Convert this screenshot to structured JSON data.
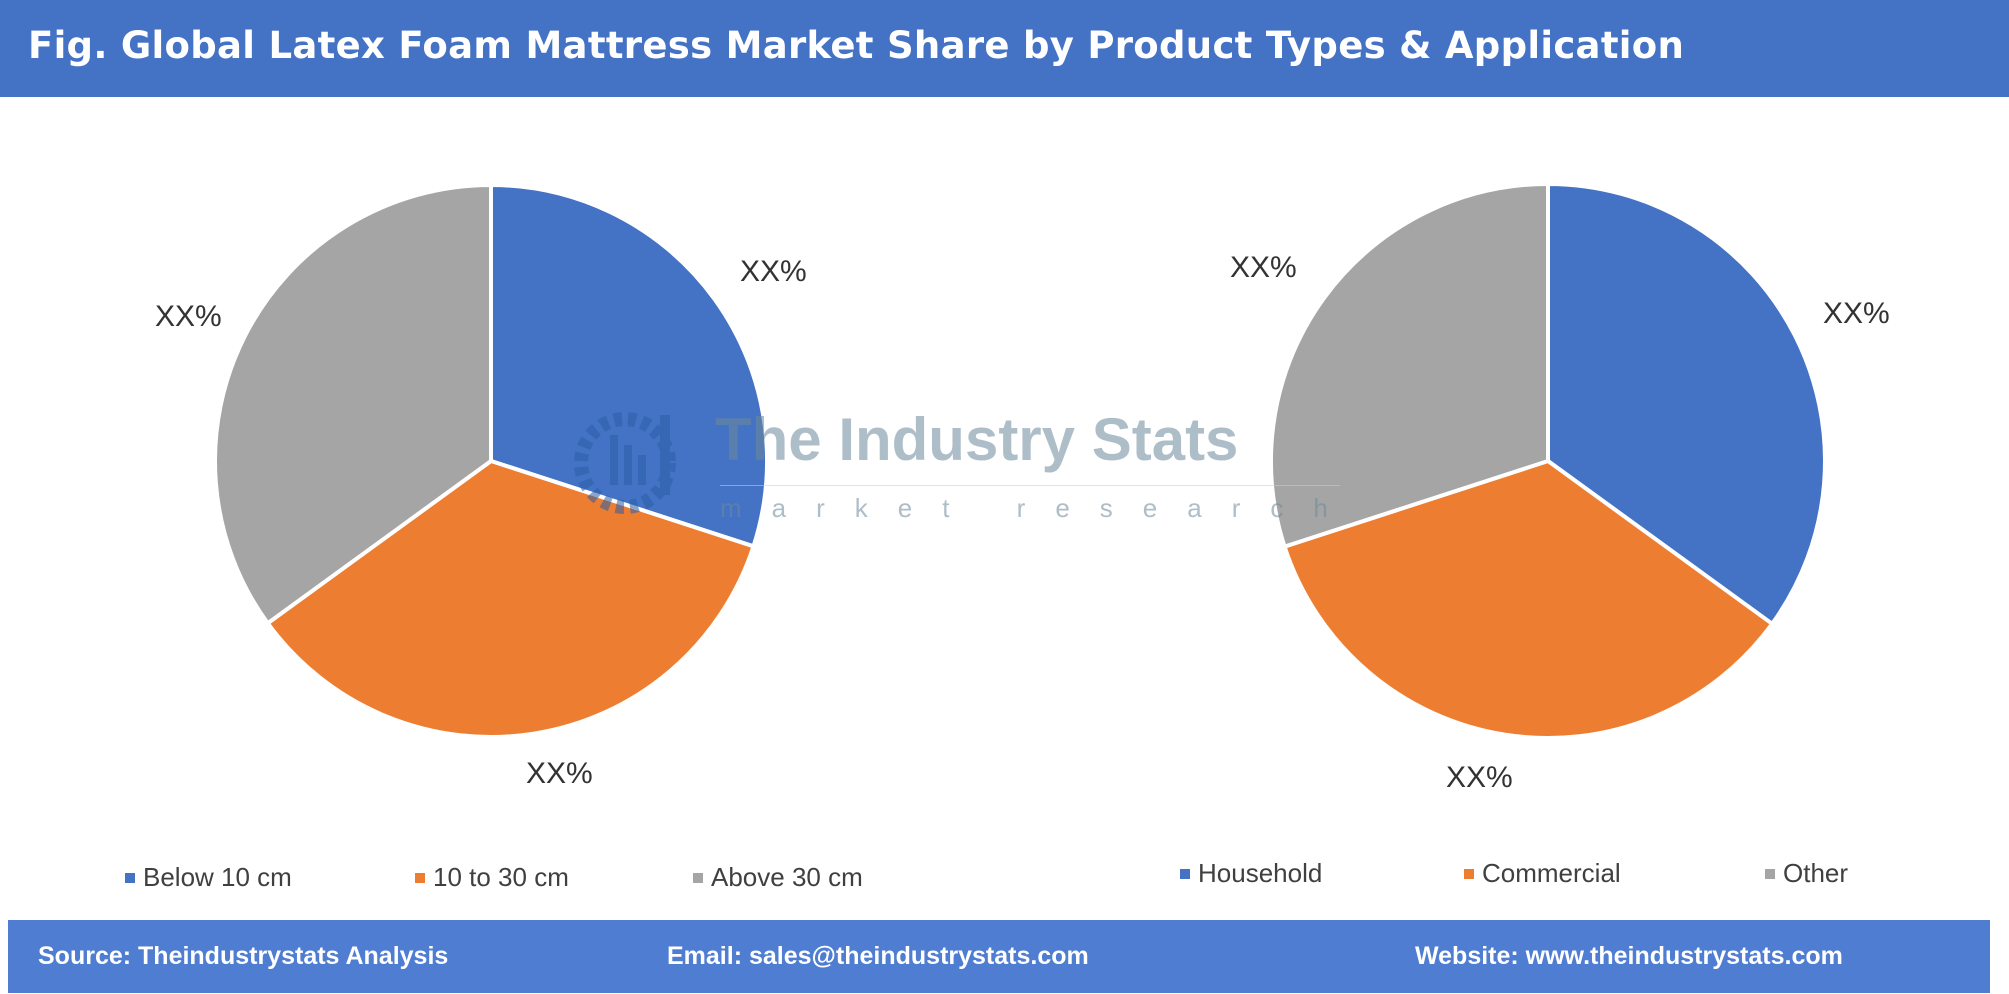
{
  "header": {
    "title": "Fig. Global Latex Foam Mattress Market Share by Product Types & Application"
  },
  "colors": {
    "blue": "#4472c4",
    "orange": "#ed7d31",
    "gray": "#a5a5a5",
    "header_bg": "#4472c4",
    "footer_bg": "#4e7dd2"
  },
  "chart_data": [
    {
      "type": "pie",
      "title": "",
      "categories": [
        "Below 10 cm",
        "10 to 30 cm",
        "Above 30 cm"
      ],
      "values": [
        30,
        35,
        35
      ],
      "data_labels": [
        "XX%",
        "XX%",
        "XX%"
      ],
      "colors": [
        "#4472c4",
        "#ed7d31",
        "#a5a5a5"
      ],
      "legend": "bottom"
    },
    {
      "type": "pie",
      "title": "",
      "categories": [
        "Household",
        "Commercial",
        "Other"
      ],
      "values": [
        35,
        35,
        30
      ],
      "data_labels": [
        "XX%",
        "XX%",
        "XX%"
      ],
      "colors": [
        "#4472c4",
        "#ed7d31",
        "#a5a5a5"
      ],
      "legend": "bottom"
    }
  ],
  "watermark": {
    "title": "The Industry Stats",
    "subtitle": "market research"
  },
  "footer": {
    "source": "Source: Theindustrystats Analysis",
    "email": "Email: sales@theindustrystats.com",
    "website": "Website: www.theindustrystats.com"
  }
}
